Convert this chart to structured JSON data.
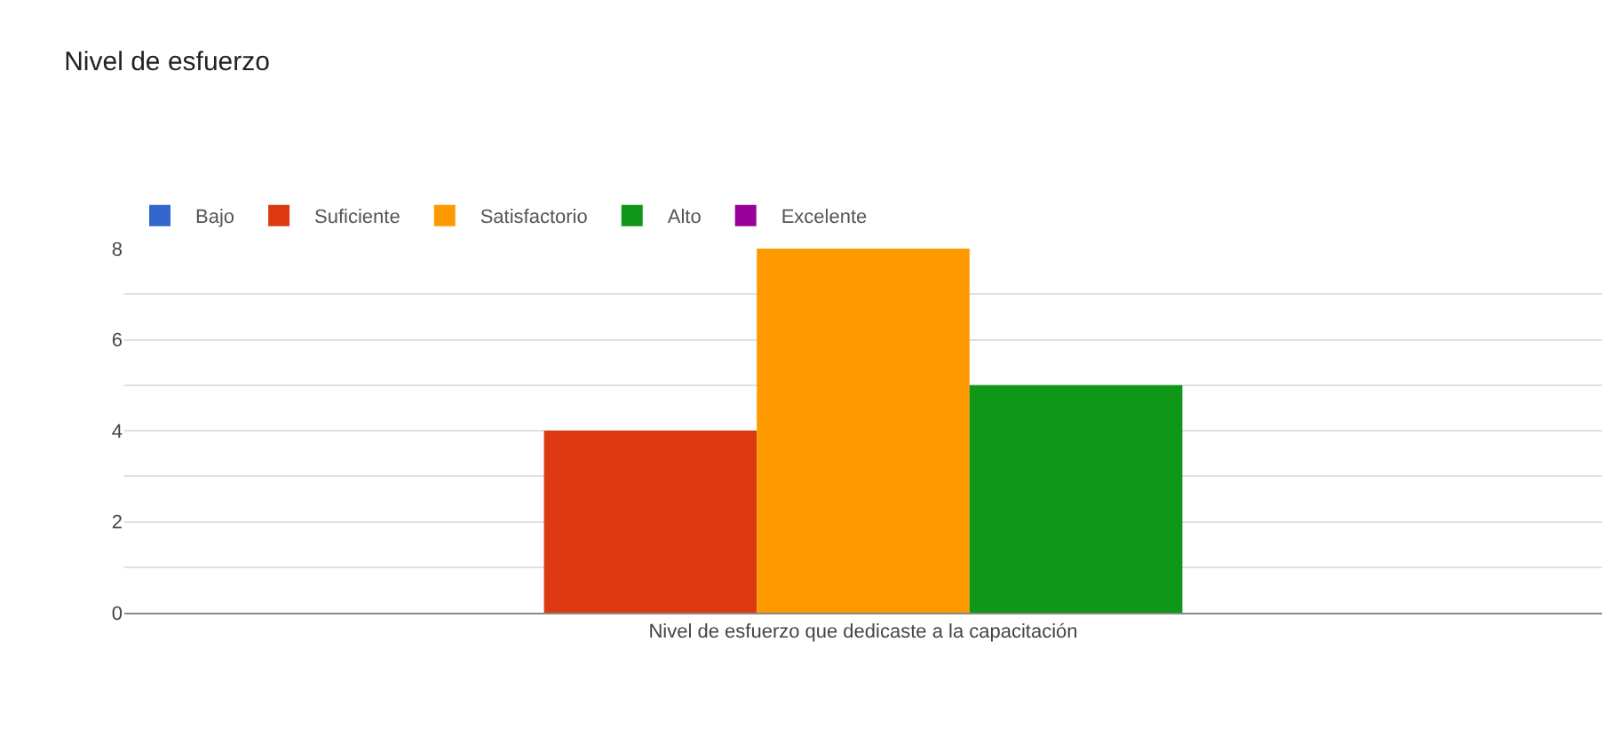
{
  "chart_data": {
    "type": "bar",
    "title": "Nivel de esfuerzo",
    "categories": [
      "Nivel de esfuerzo que dedicaste a la capacitación"
    ],
    "series": [
      {
        "name": "Bajo",
        "color": "#3366cc",
        "values": [
          0
        ]
      },
      {
        "name": "Suficiente",
        "color": "#dc3912",
        "values": [
          4
        ]
      },
      {
        "name": "Satisfactorio",
        "color": "#ff9900",
        "values": [
          8
        ]
      },
      {
        "name": "Alto",
        "color": "#109618",
        "values": [
          5
        ]
      },
      {
        "name": "Excelente",
        "color": "#990099",
        "values": [
          0
        ]
      }
    ],
    "ylim": [
      0,
      8
    ],
    "yticks": [
      0,
      {
        "value": 1,
        "label": null
      },
      2,
      {
        "value": 3,
        "label": null
      },
      4,
      {
        "value": 5,
        "label": null
      },
      6,
      {
        "value": 7,
        "label": null
      },
      8
    ],
    "grid": "y",
    "legend": "top left"
  }
}
